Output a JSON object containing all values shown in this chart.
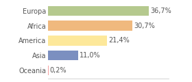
{
  "categories": [
    "Europa",
    "Africa",
    "America",
    "Asia",
    "Oceania"
  ],
  "values": [
    36.7,
    30.7,
    21.4,
    11.0,
    0.2
  ],
  "bar_colors": [
    "#b5c98e",
    "#f0b97e",
    "#fde89a",
    "#7b8fc0",
    "#f5a0a0"
  ],
  "labels": [
    "36,7%",
    "30,7%",
    "21,4%",
    "11,0%",
    "0,2%"
  ],
  "xlim": [
    0,
    44
  ],
  "background_color": "#ffffff",
  "label_fontsize": 7.0,
  "category_fontsize": 7.0,
  "bar_height": 0.65
}
